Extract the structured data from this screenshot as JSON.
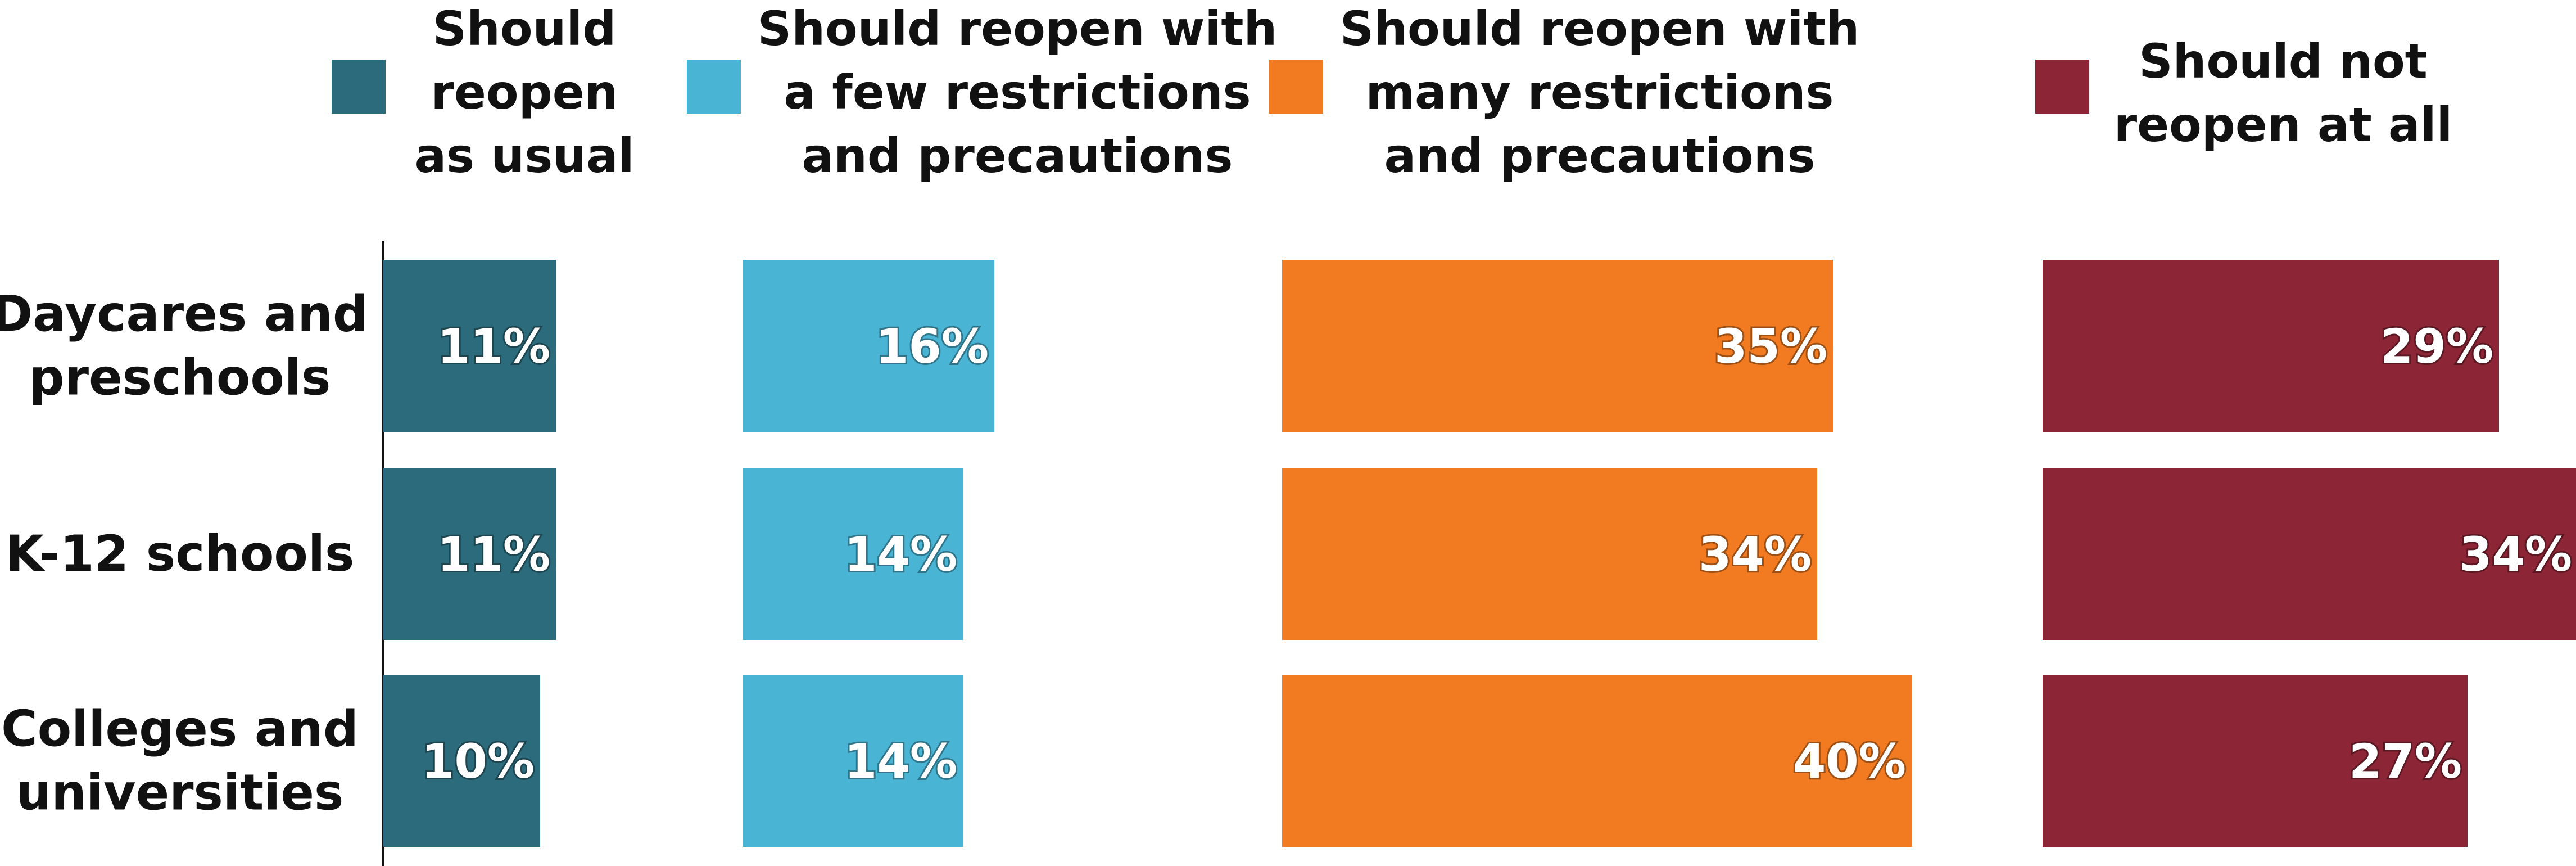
{
  "chart_data": {
    "type": "bar",
    "categories": [
      "Daycares and preschools",
      "K-12 schools",
      "Colleges and universities"
    ],
    "category_lines": [
      [
        "Daycares and",
        "preschools"
      ],
      [
        "K-12 schools"
      ],
      [
        "Colleges and",
        "universities"
      ]
    ],
    "series": [
      {
        "name": "Should reopen as usual",
        "name_lines": [
          "Should",
          "reopen",
          "as usual"
        ],
        "color": "#2b6b7b",
        "values": [
          11,
          11,
          10
        ]
      },
      {
        "name": "Should reopen with a few restrictions and precautions",
        "name_lines": [
          "Should reopen with",
          "a few restrictions",
          "and precautions"
        ],
        "color": "#4ab4d4",
        "values": [
          16,
          14,
          14
        ]
      },
      {
        "name": "Should reopen with many restrictions and precautions",
        "name_lines": [
          "Should reopen with",
          "many restrictions",
          "and precautions"
        ],
        "color": "#f27b21",
        "values": [
          35,
          34,
          40
        ]
      },
      {
        "name": "Should not reopen at all",
        "name_lines": [
          "Should not",
          "reopen at all"
        ],
        "color": "#8c2535",
        "values": [
          29,
          34,
          27
        ]
      }
    ],
    "value_suffix": "%",
    "legend_position": "top",
    "grid": false
  }
}
